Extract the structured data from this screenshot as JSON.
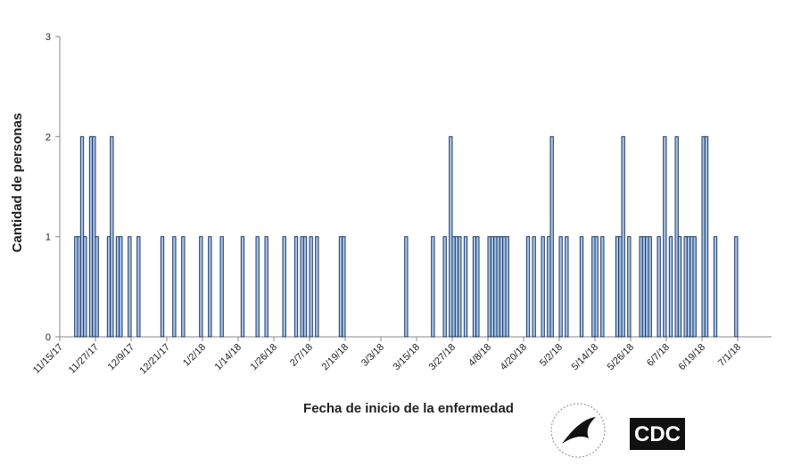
{
  "chart_data": {
    "type": "bar",
    "xlabel": "Fecha de inicio de la enfermedad",
    "ylabel": "Cantidad de personas",
    "x": [
      "11/20/17",
      "11/21/17",
      "11/22/17",
      "11/23/17",
      "11/25/17",
      "11/26/17",
      "11/27/17",
      "12/1/17",
      "12/2/17",
      "12/4/17",
      "12/5/17",
      "12/8/17",
      "12/11/17",
      "12/19/17",
      "12/23/17",
      "12/26/17",
      "1/1/18",
      "1/4/18",
      "1/8/18",
      "1/15/18",
      "1/20/18",
      "1/23/18",
      "1/29/18",
      "2/2/18",
      "2/4/18",
      "2/5/18",
      "2/7/18",
      "2/9/18",
      "2/17/18",
      "2/18/18",
      "3/11/18",
      "3/20/18",
      "3/24/18",
      "3/26/18",
      "3/27/18",
      "3/28/18",
      "3/29/18",
      "3/31/18",
      "4/3/18",
      "4/4/18",
      "4/8/18",
      "4/9/18",
      "4/10/18",
      "4/11/18",
      "4/12/18",
      "4/13/18",
      "4/14/18",
      "4/21/18",
      "4/23/18",
      "4/26/18",
      "4/28/18",
      "4/29/18",
      "5/2/18",
      "5/4/18",
      "5/9/18",
      "5/13/18",
      "5/14/18",
      "5/16/18",
      "5/21/18",
      "5/22/18",
      "5/23/18",
      "5/25/18",
      "5/29/18",
      "5/30/18",
      "5/31/18",
      "6/1/18",
      "6/4/18",
      "6/6/18",
      "6/8/18",
      "6/10/18",
      "6/11/18",
      "6/13/18",
      "6/14/18",
      "6/15/18",
      "6/16/18",
      "6/19/18",
      "6/20/18",
      "6/23/18",
      "6/30/18"
    ],
    "values": [
      1,
      1,
      2,
      1,
      2,
      2,
      1,
      1,
      2,
      1,
      1,
      1,
      1,
      1,
      1,
      1,
      1,
      1,
      1,
      1,
      1,
      1,
      1,
      1,
      1,
      1,
      1,
      1,
      1,
      1,
      1,
      1,
      1,
      2,
      1,
      1,
      1,
      1,
      1,
      1,
      1,
      1,
      1,
      1,
      1,
      1,
      1,
      1,
      1,
      1,
      1,
      2,
      1,
      1,
      1,
      1,
      1,
      1,
      1,
      1,
      2,
      1,
      1,
      1,
      1,
      1,
      1,
      2,
      1,
      2,
      1,
      1,
      1,
      1,
      1,
      2,
      2,
      1,
      1
    ],
    "color": "#a7c3e6",
    "edgecolor": "#1f3864",
    "xlim": [
      "11/15/17",
      "7/1/18"
    ],
    "xticks": [
      "11/15/17",
      "11/27/17",
      "12/9/17",
      "12/21/17",
      "1/2/18",
      "1/14/18",
      "1/26/18",
      "2/7/18",
      "2/19/18",
      "3/3/18",
      "3/15/18",
      "3/27/18",
      "4/8/18",
      "4/20/18",
      "5/2/18",
      "5/14/18",
      "5/26/18",
      "6/7/18",
      "6/19/18",
      "7/1/18"
    ],
    "ylim": [
      0,
      3
    ],
    "yticks": [
      0,
      1,
      2,
      3
    ],
    "grid": false
  },
  "logo_text": "CDC"
}
